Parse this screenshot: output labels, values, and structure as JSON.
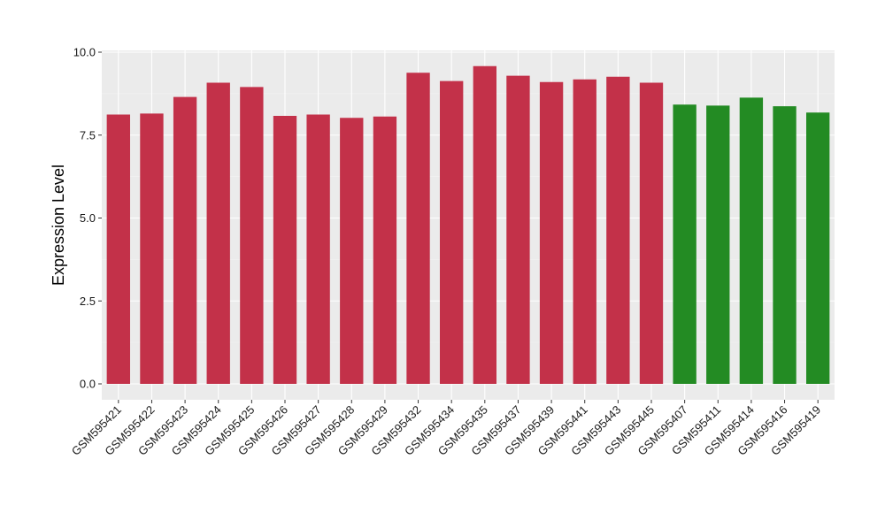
{
  "chart_data": {
    "type": "bar",
    "title": "",
    "xlabel": "",
    "ylabel": "Expression Level",
    "ylim": [
      0,
      10
    ],
    "yticks": [
      "0.0",
      "2.5",
      "5.0",
      "7.5",
      "10.0"
    ],
    "ytick_values": [
      0,
      2.5,
      5.0,
      7.5,
      10.0
    ],
    "grid": true,
    "legend": "none",
    "categories": [
      "GSM595421",
      "GSM595422",
      "GSM595423",
      "GSM595424",
      "GSM595425",
      "GSM595426",
      "GSM595427",
      "GSM595428",
      "GSM595429",
      "GSM595432",
      "GSM595434",
      "GSM595435",
      "GSM595437",
      "GSM595439",
      "GSM595441",
      "GSM595443",
      "GSM595445",
      "GSM595407",
      "GSM595411",
      "GSM595414",
      "GSM595416",
      "GSM595419"
    ],
    "values": [
      8.12,
      8.15,
      8.65,
      9.08,
      8.95,
      8.08,
      8.12,
      8.02,
      8.06,
      9.38,
      9.13,
      9.58,
      9.29,
      9.1,
      9.18,
      9.26,
      9.08,
      8.42,
      8.39,
      8.63,
      8.37,
      8.18
    ],
    "groups": [
      "red",
      "red",
      "red",
      "red",
      "red",
      "red",
      "red",
      "red",
      "red",
      "red",
      "red",
      "red",
      "red",
      "red",
      "red",
      "red",
      "red",
      "green",
      "green",
      "green",
      "green",
      "green"
    ],
    "colors": {
      "red": "#c33149",
      "green": "#238b23",
      "panel_bg": "#ebebeb",
      "grid_major": "#ffffff",
      "grid_minor": "#f5f5f5",
      "tick": "#333333"
    }
  }
}
